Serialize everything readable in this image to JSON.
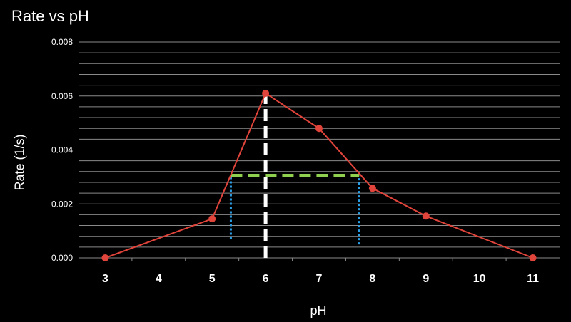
{
  "chart_data": {
    "type": "line",
    "title": "Rate vs pH",
    "xlabel": "pH",
    "ylabel": "Rate (1/s)",
    "xlim": [
      2.5,
      11.5
    ],
    "ylim": [
      0,
      0.008
    ],
    "x_ticks": [
      "3",
      "4",
      "5",
      "6",
      "7",
      "8",
      "9",
      "10",
      "11"
    ],
    "y_ticks": [
      "0.000",
      "0.002",
      "0.004",
      "0.006",
      "0.008"
    ],
    "grid": true,
    "legend": "none",
    "series": [
      {
        "x": [
          3,
          5,
          6,
          7,
          8,
          9,
          11
        ],
        "values": [
          0.0,
          0.00145,
          0.0061,
          0.0048,
          0.00258,
          0.00155,
          0.0
        ],
        "color": "#e0443a"
      }
    ],
    "annotations": {
      "peak_line": {
        "x": 6,
        "y_from": 0,
        "y_to": 0.0061,
        "color": "#ffffff",
        "style": "dashed"
      },
      "half_max_line": {
        "y": 0.00305,
        "x_from": 5.35,
        "x_to": 7.75,
        "color": "#8fd14f",
        "style": "dashed"
      },
      "half_width_lines": [
        {
          "x": 5.35,
          "y_from": 0.0007,
          "y_to": 0.00305,
          "color": "#2b9fe6",
          "style": "dotted"
        },
        {
          "x": 7.75,
          "y_from": 0.0005,
          "y_to": 0.00305,
          "color": "#2b9fe6",
          "style": "dotted"
        }
      ]
    },
    "colors": {
      "background": "#000000",
      "grid": "#8a8a8a",
      "text": "#ffffff"
    }
  }
}
